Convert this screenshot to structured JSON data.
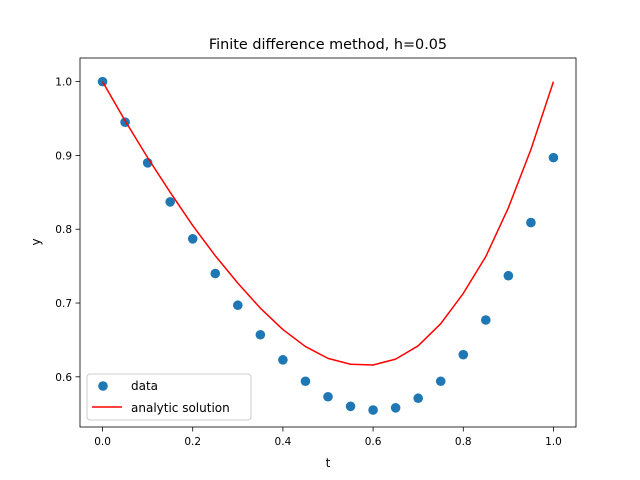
{
  "chart_data": {
    "type": "scatter",
    "title": "Finite difference method, h=0.05",
    "xlabel": "t",
    "ylabel": "y",
    "xlim": [
      -0.05,
      1.05
    ],
    "ylim": [
      0.532,
      1.032
    ],
    "xticks": [
      0.0,
      0.2,
      0.4,
      0.6,
      0.8,
      1.0
    ],
    "xtick_labels": [
      "0.0",
      "0.2",
      "0.4",
      "0.6",
      "0.8",
      "1.0"
    ],
    "yticks": [
      0.6,
      0.7,
      0.8,
      0.9,
      1.0
    ],
    "ytick_labels": [
      "0.6",
      "0.7",
      "0.8",
      "0.9",
      "1.0"
    ],
    "grid": false,
    "legend_position": "lower-left",
    "series": [
      {
        "name": "data",
        "kind": "scatter",
        "color": "#1f77b4",
        "x": [
          0.0,
          0.05,
          0.1,
          0.15,
          0.2,
          0.25,
          0.3,
          0.35,
          0.4,
          0.45,
          0.5,
          0.55,
          0.6,
          0.65,
          0.7,
          0.75,
          0.8,
          0.85,
          0.9,
          0.95,
          1.0
        ],
        "y": [
          1.0,
          0.945,
          0.89,
          0.837,
          0.787,
          0.74,
          0.697,
          0.657,
          0.623,
          0.594,
          0.573,
          0.56,
          0.555,
          0.558,
          0.571,
          0.594,
          0.63,
          0.677,
          0.737,
          0.809,
          0.897
        ]
      },
      {
        "name": "analytic solution",
        "kind": "line",
        "color": "#ff0000",
        "x": [
          0.0,
          0.05,
          0.1,
          0.15,
          0.2,
          0.25,
          0.3,
          0.35,
          0.4,
          0.45,
          0.5,
          0.55,
          0.6,
          0.65,
          0.7,
          0.75,
          0.8,
          0.85,
          0.9,
          0.95,
          1.0
        ],
        "y": [
          1.0,
          0.947,
          0.897,
          0.85,
          0.805,
          0.764,
          0.727,
          0.693,
          0.664,
          0.641,
          0.625,
          0.617,
          0.616,
          0.624,
          0.642,
          0.672,
          0.713,
          0.763,
          0.829,
          0.908,
          1.0
        ]
      }
    ]
  }
}
